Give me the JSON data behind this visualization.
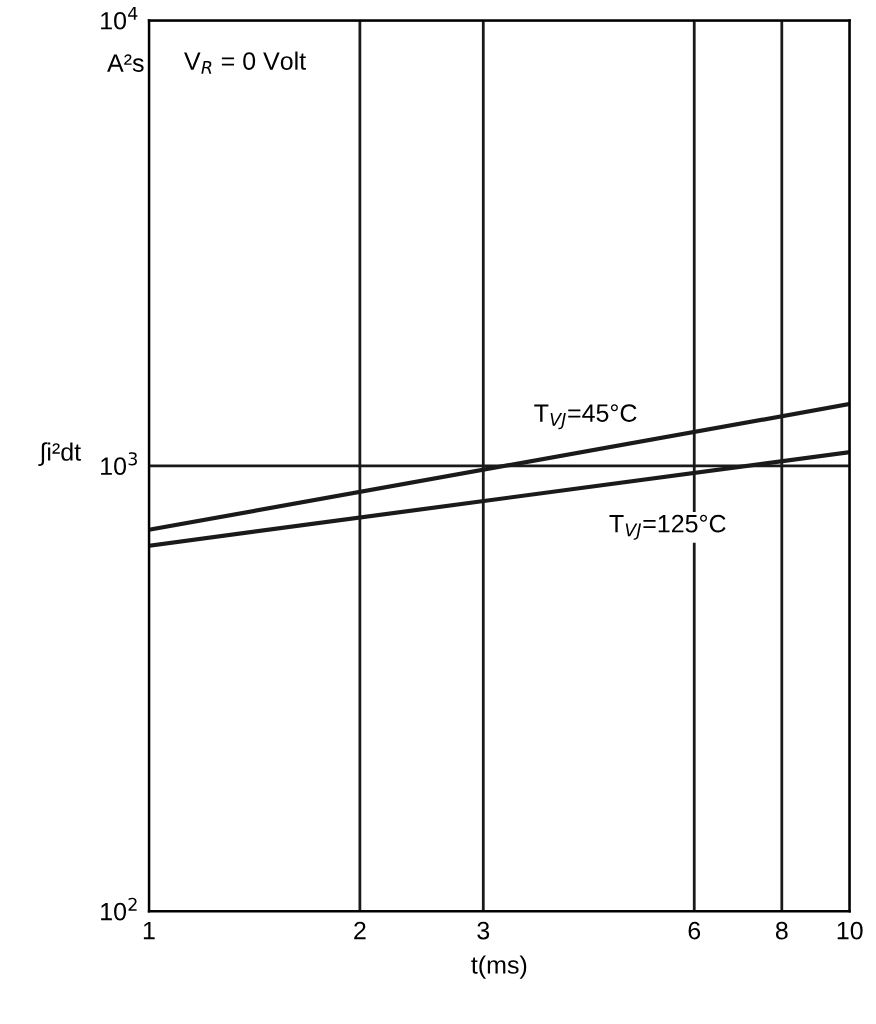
{
  "chart_data": {
    "type": "line",
    "xlabel": "t(ms)",
    "ylabel": "∫i²dt",
    "annotations": [
      "A²s",
      "V$_{R}$ = 0 Volt"
    ],
    "x": [
      1,
      10
    ],
    "series": [
      {
        "name": "T$_{VJ}$=45°C",
        "color": "#1a1a1a",
        "values": [
          719,
          1377
        ]
      },
      {
        "name": "T$_{VJ}$=125°C",
        "color": "#1a1a1a",
        "values": [
          662,
          1074
        ]
      }
    ],
    "log": "xy",
    "xlim": [
      1,
      10
    ],
    "ylim": [
      100,
      10000
    ],
    "xticks": [
      1,
      2,
      3,
      6,
      8,
      10
    ],
    "yticks": [
      {
        "value": 100,
        "label": "10$^{2}$"
      },
      {
        "value": 1000,
        "label": "10$^{3}$"
      },
      {
        "value": 10000,
        "label": "10$^{4}$"
      }
    ],
    "grid": true,
    "legend": false,
    "marker": "none",
    "line_style": "solid"
  }
}
